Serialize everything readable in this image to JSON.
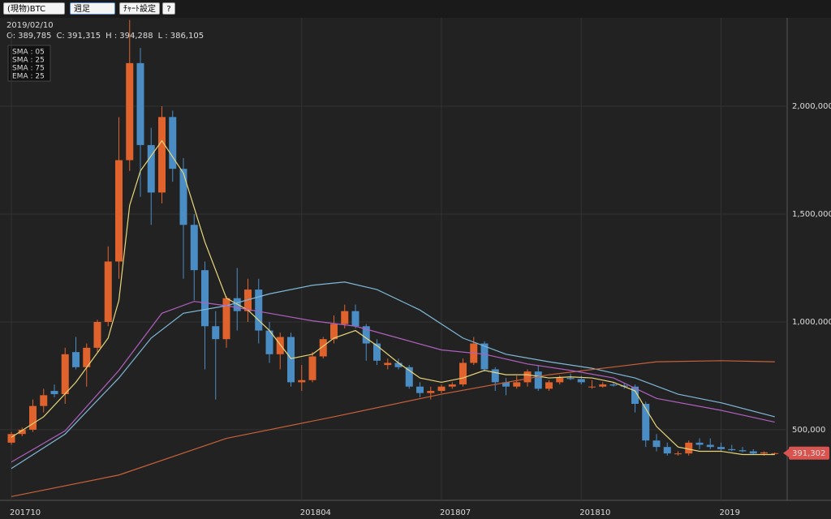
{
  "ui": {
    "toolbar": {
      "market": "(現物)BTC",
      "period": "週足",
      "settings": "ﾁｬｰﾄ設定",
      "help": "?"
    },
    "info": {
      "date": "2019/02/10",
      "ohlc": [
        {
          "key": "O:",
          "value": 389785,
          "label": "389,785"
        },
        {
          "key": "C:",
          "value": 391315,
          "label": "391,315"
        },
        {
          "key": "H :",
          "value": 394288,
          "label": "394,288"
        },
        {
          "key": "L :",
          "value": 386105,
          "label": "386,105"
        }
      ]
    }
  },
  "chart_data": {
    "type": "candlestick",
    "categories": [
      "201710",
      null,
      null,
      null,
      null,
      null,
      null,
      null,
      null,
      null,
      null,
      null,
      null,
      null,
      null,
      null,
      null,
      null,
      null,
      null,
      null,
      null,
      null,
      null,
      null,
      null,
      null,
      "201804",
      null,
      null,
      null,
      null,
      null,
      null,
      null,
      null,
      null,
      null,
      null,
      null,
      "201807",
      null,
      null,
      null,
      null,
      null,
      null,
      null,
      null,
      null,
      null,
      null,
      null,
      "201810",
      null,
      null,
      null,
      null,
      null,
      null,
      null,
      null,
      null,
      null,
      null,
      null,
      "2019",
      null,
      null,
      null,
      null,
      null
    ],
    "open": [
      440000,
      480000,
      500000,
      610000,
      680000,
      665000,
      860000,
      790000,
      880000,
      1000000,
      1280000,
      1750000,
      2200000,
      1820000,
      1600000,
      1950000,
      1710000,
      1450000,
      1240000,
      980000,
      920000,
      1110000,
      1050000,
      1150000,
      960000,
      850000,
      930000,
      720000,
      730000,
      840000,
      920000,
      990000,
      1050000,
      980000,
      900000,
      800000,
      810000,
      790000,
      700000,
      670000,
      680000,
      700000,
      710000,
      810000,
      900000,
      780000,
      720000,
      700000,
      720000,
      770000,
      690000,
      720000,
      740000,
      735000,
      700000,
      700000,
      710000,
      705000,
      700000,
      620000,
      450000,
      420000,
      390000,
      390000,
      440000,
      430000,
      420000,
      410000,
      405000,
      400000,
      390000,
      389785
    ],
    "high": [
      490000,
      510000,
      640000,
      690000,
      710000,
      880000,
      930000,
      900000,
      1010000,
      1350000,
      1950000,
      2400000,
      2270000,
      1900000,
      2000000,
      1980000,
      1760000,
      1500000,
      1280000,
      1050000,
      1120000,
      1250000,
      1200000,
      1200000,
      1000000,
      950000,
      950000,
      800000,
      860000,
      930000,
      1030000,
      1080000,
      1080000,
      990000,
      920000,
      830000,
      830000,
      800000,
      720000,
      700000,
      710000,
      720000,
      830000,
      930000,
      910000,
      790000,
      740000,
      750000,
      780000,
      800000,
      730000,
      750000,
      760000,
      750000,
      730000,
      720000,
      720000,
      715000,
      710000,
      630000,
      480000,
      440000,
      400000,
      450000,
      460000,
      460000,
      440000,
      430000,
      420000,
      410000,
      400000,
      394288
    ],
    "low": [
      430000,
      470000,
      490000,
      580000,
      650000,
      620000,
      780000,
      700000,
      860000,
      980000,
      1200000,
      1700000,
      1580000,
      1450000,
      1550000,
      1650000,
      1200000,
      1100000,
      780000,
      640000,
      880000,
      960000,
      1000000,
      900000,
      810000,
      780000,
      700000,
      680000,
      720000,
      830000,
      900000,
      970000,
      970000,
      820000,
      800000,
      780000,
      780000,
      690000,
      650000,
      640000,
      670000,
      690000,
      700000,
      800000,
      770000,
      680000,
      660000,
      690000,
      700000,
      680000,
      680000,
      710000,
      730000,
      710000,
      690000,
      695000,
      700000,
      690000,
      580000,
      420000,
      400000,
      380000,
      380000,
      380000,
      410000,
      410000,
      400000,
      400000,
      395000,
      385000,
      380000,
      386105
    ],
    "close": [
      480000,
      500000,
      610000,
      660000,
      665000,
      850000,
      790000,
      880000,
      1000000,
      1280000,
      1750000,
      2200000,
      1820000,
      1600000,
      1950000,
      1710000,
      1450000,
      1240000,
      980000,
      920000,
      1110000,
      1050000,
      1150000,
      960000,
      850000,
      930000,
      720000,
      730000,
      840000,
      920000,
      990000,
      1050000,
      980000,
      900000,
      820000,
      810000,
      790000,
      700000,
      670000,
      680000,
      700000,
      710000,
      810000,
      900000,
      780000,
      720000,
      700000,
      720000,
      770000,
      690000,
      720000,
      740000,
      735000,
      720000,
      700000,
      710000,
      705000,
      700000,
      620000,
      450000,
      420000,
      390000,
      390000,
      440000,
      430000,
      420000,
      410000,
      405000,
      400000,
      390000,
      395000,
      391315
    ],
    "up_color": "#e0622c",
    "down_color": "#4a8cc4",
    "series": [
      {
        "name": "SMA : 05",
        "color": "#e8d77a",
        "x": [
          0,
          3,
          6,
          9,
          10,
          11,
          12,
          14,
          16,
          18,
          20,
          22,
          24,
          26,
          28,
          30,
          32,
          34,
          36,
          38,
          40,
          42,
          44,
          46,
          48,
          50,
          52,
          54,
          56,
          58,
          60,
          62,
          64,
          66,
          68,
          71
        ],
        "values": [
          465000,
          560000,
          720000,
          925000,
          1100000,
          1540000,
          1700000,
          1840000,
          1690000,
          1370000,
          1110000,
          1055000,
          960000,
          830000,
          850000,
          925000,
          960000,
          890000,
          810000,
          740000,
          720000,
          740000,
          775000,
          755000,
          755000,
          740000,
          745000,
          740000,
          720000,
          680000,
          515000,
          420000,
          400000,
          400000,
          385000,
          385000
        ]
      },
      {
        "name": "SMA : 25",
        "color": "#7fb8d8",
        "x": [
          0,
          5,
          10,
          13,
          16,
          20,
          24,
          28,
          31,
          34,
          38,
          42,
          46,
          50,
          54,
          58,
          62,
          66,
          71
        ],
        "values": [
          320000,
          480000,
          740000,
          925000,
          1040000,
          1075000,
          1130000,
          1170000,
          1185000,
          1150000,
          1055000,
          925000,
          850000,
          815000,
          785000,
          740000,
          665000,
          625000,
          560000
        ]
      },
      {
        "name": "SMA : 75",
        "color": "#c8603a",
        "x": [
          0,
          10,
          20,
          30,
          40,
          50,
          60,
          66,
          71
        ],
        "values": [
          190000,
          290000,
          460000,
          560000,
          665000,
          755000,
          815000,
          820000,
          815000
        ]
      },
      {
        "name": "EMA : 25",
        "color": "#b060c0",
        "x": [
          0,
          5,
          10,
          14,
          17,
          20,
          24,
          28,
          32,
          36,
          40,
          44,
          48,
          52,
          56,
          60,
          66,
          71
        ],
        "values": [
          350000,
          495000,
          775000,
          1040000,
          1095000,
          1075000,
          1040000,
          1005000,
          980000,
          925000,
          870000,
          850000,
          805000,
          775000,
          740000,
          645000,
          590000,
          535000
        ]
      }
    ],
    "ylim": [
      180000,
      2410000
    ],
    "yticks": [
      {
        "value": 500000,
        "label": "500,000"
      },
      {
        "value": 1000000,
        "label": "1,000,000"
      },
      {
        "value": 1500000,
        "label": "1,500,000"
      },
      {
        "value": 2000000,
        "label": "2,000,000"
      }
    ],
    "grid": true,
    "last_price": {
      "value": 391302,
      "label": "391,302"
    }
  }
}
